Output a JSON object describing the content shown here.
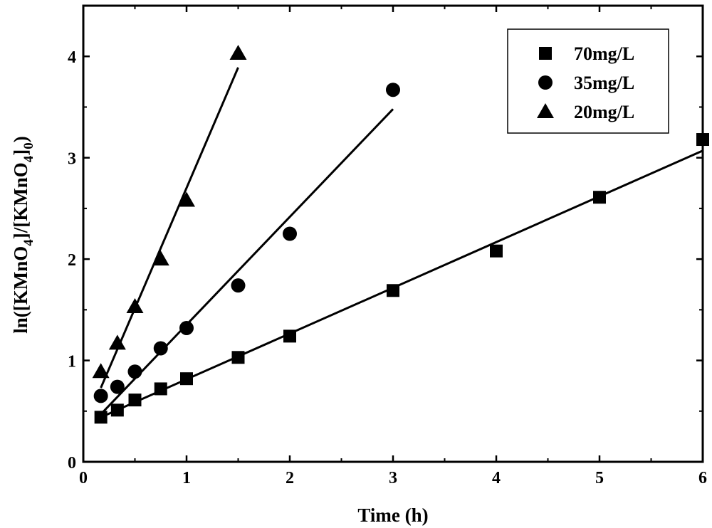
{
  "chart_data": {
    "type": "scatter",
    "xlabel": "Time (h)",
    "ylabel_parts": [
      "ln([KMnO",
      "4",
      "]/[KMnO",
      "4",
      "]",
      "0",
      ")"
    ],
    "xlim": [
      0,
      6
    ],
    "ylim": [
      0,
      4.5
    ],
    "xticks": [
      0,
      1,
      2,
      3,
      4,
      5,
      6
    ],
    "yticks": [
      0,
      1,
      2,
      3,
      4
    ],
    "xtick_labels": [
      "0",
      "1",
      "2",
      "3",
      "4",
      "5",
      "6"
    ],
    "ytick_labels": [
      "0",
      "1",
      "2",
      "3",
      "4"
    ],
    "legend_position": "top-right",
    "grid": false,
    "series": [
      {
        "name": "70mg/L",
        "marker": "square",
        "x": [
          0.17,
          0.33,
          0.5,
          0.75,
          1,
          1.5,
          2,
          3,
          4,
          5,
          6
        ],
        "y": [
          0.44,
          0.51,
          0.61,
          0.72,
          0.82,
          1.03,
          1.24,
          1.69,
          2.08,
          2.61,
          3.18
        ],
        "fit": {
          "x": [
            0.17,
            6
          ],
          "y": [
            0.44,
            3.07
          ]
        }
      },
      {
        "name": "35mg/L",
        "marker": "circle",
        "x": [
          0.17,
          0.33,
          0.5,
          0.75,
          1,
          1.5,
          2,
          3
        ],
        "y": [
          0.65,
          0.74,
          0.89,
          1.12,
          1.32,
          1.74,
          2.25,
          3.67
        ],
        "fit": {
          "x": [
            0.17,
            3
          ],
          "y": [
            0.47,
            3.48
          ]
        }
      },
      {
        "name": "20mg/L",
        "marker": "triangle",
        "x": [
          0.17,
          0.33,
          0.5,
          0.75,
          1,
          1.5
        ],
        "y": [
          0.89,
          1.17,
          1.53,
          2.0,
          2.58,
          4.03
        ],
        "fit": {
          "x": [
            0.17,
            1.5
          ],
          "y": [
            0.73,
            3.89
          ]
        }
      }
    ]
  }
}
